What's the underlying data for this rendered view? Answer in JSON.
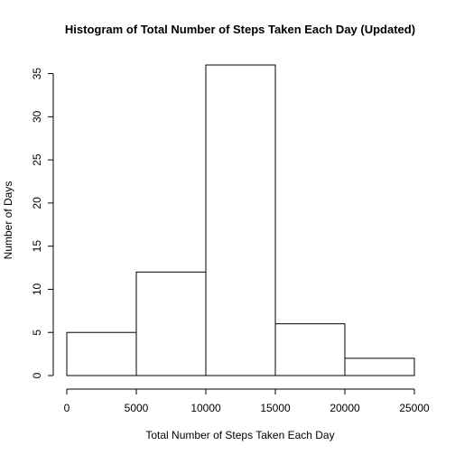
{
  "chart_data": {
    "type": "bar",
    "title": "Histogram of Total Number of Steps Taken Each Day (Updated)",
    "xlabel": "Total Number of Steps Taken Each Day",
    "ylabel": "Number of Days",
    "bins": [
      {
        "from": 0,
        "to": 5000,
        "count": 5
      },
      {
        "from": 5000,
        "to": 10000,
        "count": 12
      },
      {
        "from": 10000,
        "to": 15000,
        "count": 36
      },
      {
        "from": 15000,
        "to": 20000,
        "count": 6
      },
      {
        "from": 20000,
        "to": 25000,
        "count": 2
      }
    ],
    "xlim": [
      0,
      25000
    ],
    "ylim": [
      0,
      36
    ],
    "x_ticks": [
      0,
      5000,
      10000,
      15000,
      20000,
      25000
    ],
    "y_ticks": [
      0,
      5,
      10,
      15,
      20,
      25,
      30,
      35
    ],
    "grid": false,
    "legend": "none"
  }
}
